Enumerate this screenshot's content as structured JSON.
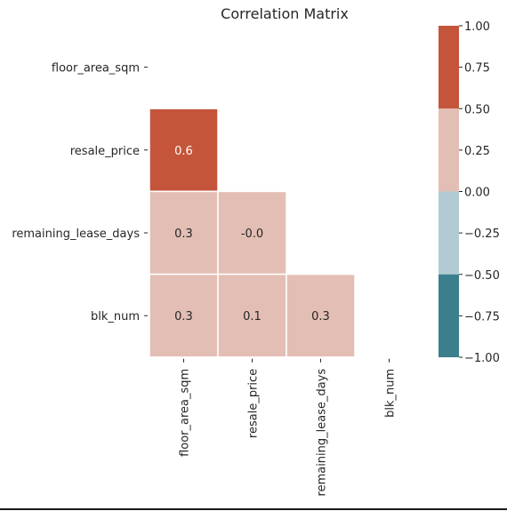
{
  "chart_data": {
    "type": "heatmap",
    "title": "Correlation Matrix",
    "row_labels": [
      "floor_area_sqm",
      "resale_price",
      "remaining_lease_days",
      "blk_num"
    ],
    "col_labels": [
      "floor_area_sqm",
      "resale_price",
      "remaining_lease_days",
      "blk_num"
    ],
    "mask": "upper-triangle-including-diagonal",
    "cells": [
      {
        "row": 1,
        "col": 0,
        "value": 0.6,
        "label": "0.6"
      },
      {
        "row": 2,
        "col": 0,
        "value": 0.3,
        "label": "0.3"
      },
      {
        "row": 2,
        "col": 1,
        "value": -0.0,
        "label": "-0.0"
      },
      {
        "row": 3,
        "col": 0,
        "value": 0.3,
        "label": "0.3"
      },
      {
        "row": 3,
        "col": 1,
        "value": 0.1,
        "label": "0.1"
      },
      {
        "row": 3,
        "col": 2,
        "value": 0.3,
        "label": "0.3"
      }
    ],
    "colorbar": {
      "vmin": -1.0,
      "vmax": 1.0,
      "ticks": [
        1.0,
        0.75,
        0.5,
        0.25,
        0.0,
        -0.25,
        -0.5,
        -0.75,
        -1.0
      ],
      "tick_labels": [
        "1.00",
        "0.75",
        "0.50",
        "0.25",
        "0.00",
        "−0.25",
        "−0.50",
        "−0.75",
        "−1.00"
      ],
      "bins": [
        {
          "from": 0.5,
          "to": 1.0,
          "color": "#c4553a"
        },
        {
          "from": 0.0,
          "to": 0.5,
          "color": "#e3beb4"
        },
        {
          "from": -0.5,
          "to": 0.0,
          "color": "#b0cbd1"
        },
        {
          "from": -1.0,
          "to": -0.5,
          "color": "#3b7e8c"
        }
      ]
    },
    "grid": false
  }
}
